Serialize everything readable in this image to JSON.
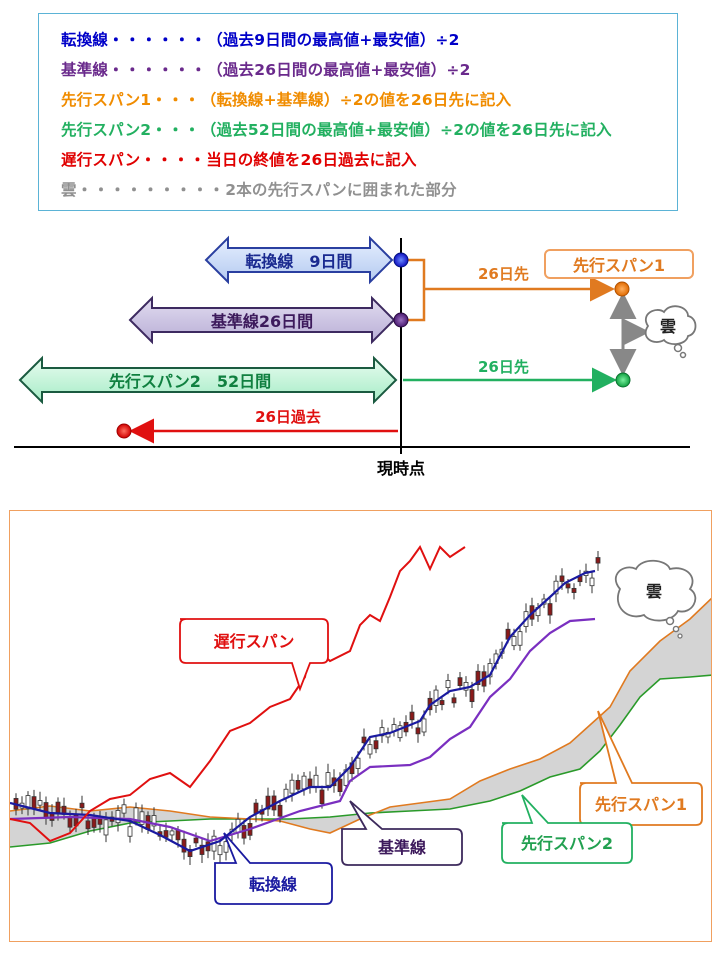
{
  "legend": {
    "rows": [
      {
        "name": "転換線",
        "dots": "・・・・・・",
        "desc": "（過去9日間の最高値+最安値）÷2",
        "color": "#0000c8"
      },
      {
        "name": "基準線",
        "dots": "・・・・・・",
        "desc": "（過去26日間の最高値+最安値）÷2",
        "color": "#6a2a8c"
      },
      {
        "name": "先行スパン1",
        "dots": "・・・",
        "desc": "（転換線+基準線）÷2の値を26日先に記入",
        "color": "#f08c00"
      },
      {
        "name": "先行スパン2",
        "dots": "・・・",
        "desc": "（過去52日間の最高値+最安値）÷2の値を26日先に記入",
        "color": "#22b060"
      },
      {
        "name": "遅行スパン",
        "dots": "・・・・",
        "desc": "当日の終値を26日過去に記入",
        "color": "#e00000"
      },
      {
        "name": "雲",
        "dots": "・・・・・・・・・",
        "desc": "2本の先行スパンに囲まれた部分",
        "color": "#909090"
      }
    ]
  },
  "timeline": {
    "tenkan_arrow_label": "転換線　9日間",
    "kijun_arrow_label": "基準線26日間",
    "span2_arrow_label": "先行スパン2　52日間",
    "chikou_label": "26日過去",
    "forward_label_1": "26日先",
    "forward_label_2": "26日先",
    "span1_box_label": "先行スパン1",
    "cloud_label": "雲",
    "now_label": "現時点"
  },
  "chart": {
    "callouts": {
      "chikou": "遅行スパン",
      "kijun": "基準線",
      "tenkan": "転換線",
      "span1": "先行スパン1",
      "span2": "先行スパン2",
      "cloud": "雲"
    }
  },
  "colors": {
    "tenkan": "#1a1aa0",
    "kijun": "#7a2fc0",
    "span1": "#e07a20",
    "span2": "#2a9a2a",
    "chikou": "#e01010",
    "cloud": "#d4d4d4",
    "candle_up": "#ffffff",
    "candle_down": "#8a1a1a"
  }
}
